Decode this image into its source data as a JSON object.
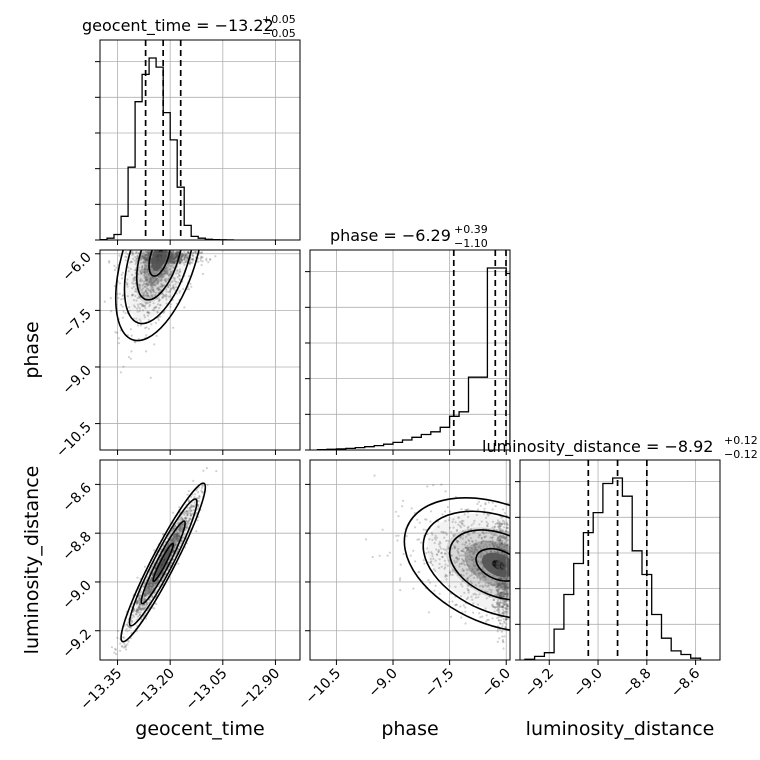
{
  "chart_data": {
    "type": "corner",
    "parameters": [
      "geocent_time",
      "phase",
      "luminosity_distance"
    ],
    "axis_labels": {
      "geocent_time": "geocent_time",
      "phase": "phase",
      "luminosity_distance": "luminosity_distance"
    },
    "titles": [
      {
        "label": "geocent_time",
        "median": "−13.22",
        "plus": "+0.05",
        "minus": "−0.05"
      },
      {
        "label": "phase",
        "median": "−6.29",
        "plus": "+0.39",
        "minus": "−1.10"
      },
      {
        "label": "luminosity_distance",
        "median": "−8.92",
        "plus": "+0.12",
        "minus": "−0.12"
      }
    ],
    "ranges": {
      "geocent_time": [
        -13.4,
        -12.83
      ],
      "phase": [
        -11.2,
        -5.9
      ],
      "luminosity_distance": [
        -9.32,
        -8.5
      ]
    },
    "ticks": {
      "geocent_time": {
        "values": [
          -13.35,
          -13.2,
          -13.05,
          -12.9
        ],
        "labels": [
          "−13.35",
          "−13.20",
          "−13.05",
          "−12.90"
        ]
      },
      "phase": {
        "values": [
          -10.5,
          -9.0,
          -7.5,
          -6.0
        ],
        "labels": [
          "−10.5",
          "−9.0",
          "−7.5",
          "−6.0"
        ]
      },
      "luminosity_distance": {
        "values": [
          -9.2,
          -9.0,
          -8.8,
          -8.6
        ],
        "labels": [
          "−9.2",
          "−9.0",
          "−8.8",
          "−8.6"
        ]
      }
    },
    "quantiles": {
      "geocent_time": [
        -13.27,
        -13.22,
        -13.17
      ],
      "phase": [
        -7.39,
        -6.29,
        -5.9
      ],
      "luminosity_distance": [
        -9.04,
        -8.92,
        -8.8
      ]
    },
    "histograms": {
      "geocent_time": {
        "edges": [
          -13.4,
          -13.38,
          -13.36,
          -13.34,
          -13.32,
          -13.3,
          -13.28,
          -13.26,
          -13.24,
          -13.22,
          -13.2,
          -13.18,
          -13.16,
          -13.14,
          -13.12,
          -13.1,
          -13.08,
          -13.06,
          -13.04,
          -13.02
        ],
        "counts": [
          0.002,
          0.01,
          0.03,
          0.13,
          0.4,
          0.76,
          0.91,
          1.0,
          0.95,
          0.7,
          0.55,
          0.29,
          0.08,
          0.02,
          0.01,
          0.004,
          0.002,
          0.001,
          0.0005
        ]
      },
      "phase": {
        "edges": [
          -11.0,
          -10.75,
          -10.5,
          -10.25,
          -10.0,
          -9.75,
          -9.5,
          -9.25,
          -9.0,
          -8.75,
          -8.5,
          -8.25,
          -8.0,
          -7.75,
          -7.5,
          -7.25,
          -7.0,
          -6.75,
          -6.5,
          -6.25,
          -6.0,
          -5.9
        ],
        "counts": [
          0.002,
          0.004,
          0.006,
          0.009,
          0.013,
          0.018,
          0.024,
          0.032,
          0.042,
          0.055,
          0.07,
          0.085,
          0.1,
          0.125,
          0.185,
          0.21,
          0.4,
          0.4,
          1.0,
          1.0,
          0.97
        ]
      },
      "luminosity_distance": {
        "edges": [
          -9.3,
          -9.26,
          -9.22,
          -9.18,
          -9.14,
          -9.1,
          -9.06,
          -9.02,
          -8.98,
          -8.94,
          -8.9,
          -8.86,
          -8.82,
          -8.78,
          -8.74,
          -8.7,
          -8.66,
          -8.62,
          -8.58
        ],
        "counts": [
          0.004,
          0.02,
          0.04,
          0.17,
          0.36,
          0.53,
          0.7,
          0.81,
          0.97,
          1.0,
          0.9,
          0.6,
          0.47,
          0.25,
          0.12,
          0.05,
          0.03,
          0.01
        ]
      }
    },
    "pair_means": {
      "phase_vs_geocent_time": {
        "center": [
          -13.23,
          -6.05
        ],
        "sigma": [
          0.05,
          0.9
        ],
        "correlation": 0.5,
        "n_points": 1400
      },
      "luminosity_distance_vs_geocent_time": {
        "center": [
          -13.22,
          -8.92
        ],
        "sigma": [
          0.048,
          0.13
        ],
        "correlation": 0.95,
        "n_points": 1400
      },
      "luminosity_distance_vs_phase": {
        "center": [
          -6.2,
          -8.93
        ],
        "sigma": [
          1.0,
          0.11
        ],
        "correlation": -0.35,
        "n_points": 1400
      }
    },
    "grid": true,
    "colors": {
      "line": "#000000",
      "grid": "#b0b0b0",
      "points": "#555555"
    }
  }
}
